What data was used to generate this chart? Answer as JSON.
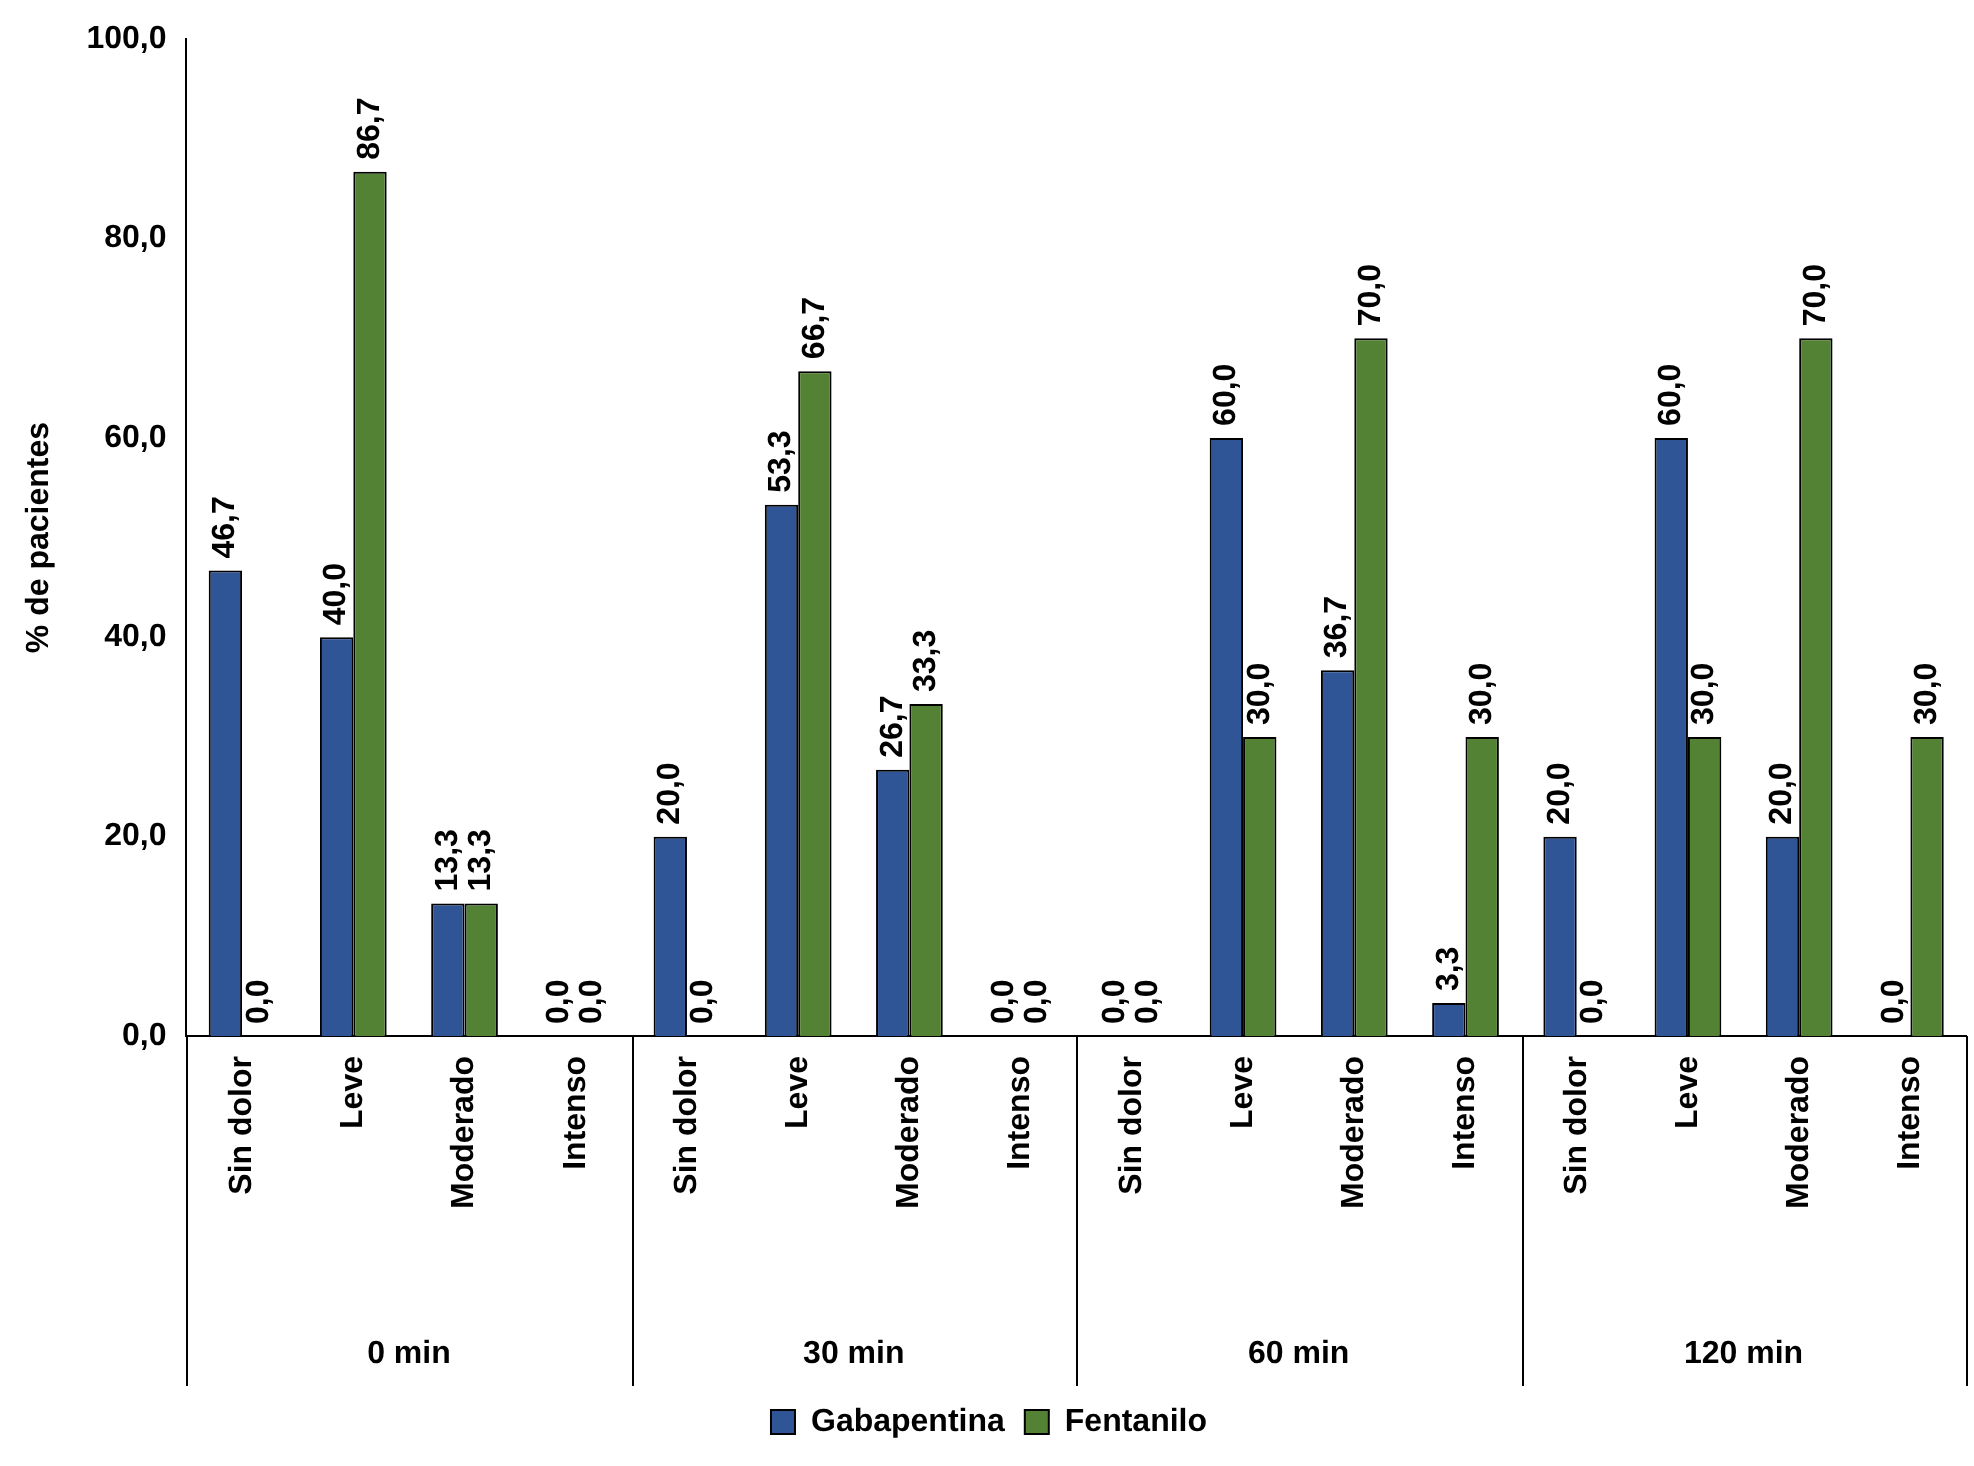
{
  "chart_data": {
    "type": "bar",
    "ylabel": "% de pacientes",
    "categories": [
      "Sin dolor",
      "Leve",
      "Moderado",
      "Intenso",
      "Sin dolor",
      "Leve",
      "Moderado",
      "Intenso",
      "Sin dolor",
      "Leve",
      "Moderado",
      "Intenso",
      "Sin dolor",
      "Leve",
      "Moderado",
      "Intenso"
    ],
    "annotations": [
      "0 min",
      "30 min",
      "60 min",
      "120 min"
    ],
    "series": [
      {
        "name": "Gabapentina",
        "color": "#2f5597",
        "values": [
          46.7,
          40.0,
          13.3,
          0.0,
          20.0,
          53.3,
          26.7,
          0.0,
          0.0,
          60.0,
          36.7,
          3.3,
          20.0,
          60.0,
          20.0,
          0.0
        ],
        "value_labels": [
          "46,7",
          "40,0",
          "13,3",
          "0,0",
          "20,0",
          "53,3",
          "26,7",
          "0,0",
          "0,0",
          "60,0",
          "36,7",
          "3,3",
          "20,0",
          "60,0",
          "20,0",
          "0,0"
        ]
      },
      {
        "name": "Fentanilo",
        "color": "#548235",
        "values": [
          0.0,
          86.7,
          13.3,
          0.0,
          0.0,
          66.7,
          33.3,
          0.0,
          0.0,
          30.0,
          70.0,
          30.0,
          0.0,
          30.0,
          70.0,
          30.0
        ],
        "value_labels": [
          "0,0",
          "86,7",
          "13,3",
          "0,0",
          "0,0",
          "66,7",
          "33,3",
          "0,0",
          "0,0",
          "30,0",
          "70,0",
          "30,0",
          "0,0",
          "30,0",
          "70,0",
          "30,0"
        ]
      }
    ],
    "ylim": [
      0,
      100
    ],
    "yticks": [
      {
        "value": 0,
        "label": "0,0"
      },
      {
        "value": 20,
        "label": "20,0"
      },
      {
        "value": 40,
        "label": "40,0"
      },
      {
        "value": 60,
        "label": "60,0"
      },
      {
        "value": 80,
        "label": "80,0"
      },
      {
        "value": 100,
        "label": "100,0"
      }
    ],
    "grid": false,
    "legend": "bottom"
  }
}
